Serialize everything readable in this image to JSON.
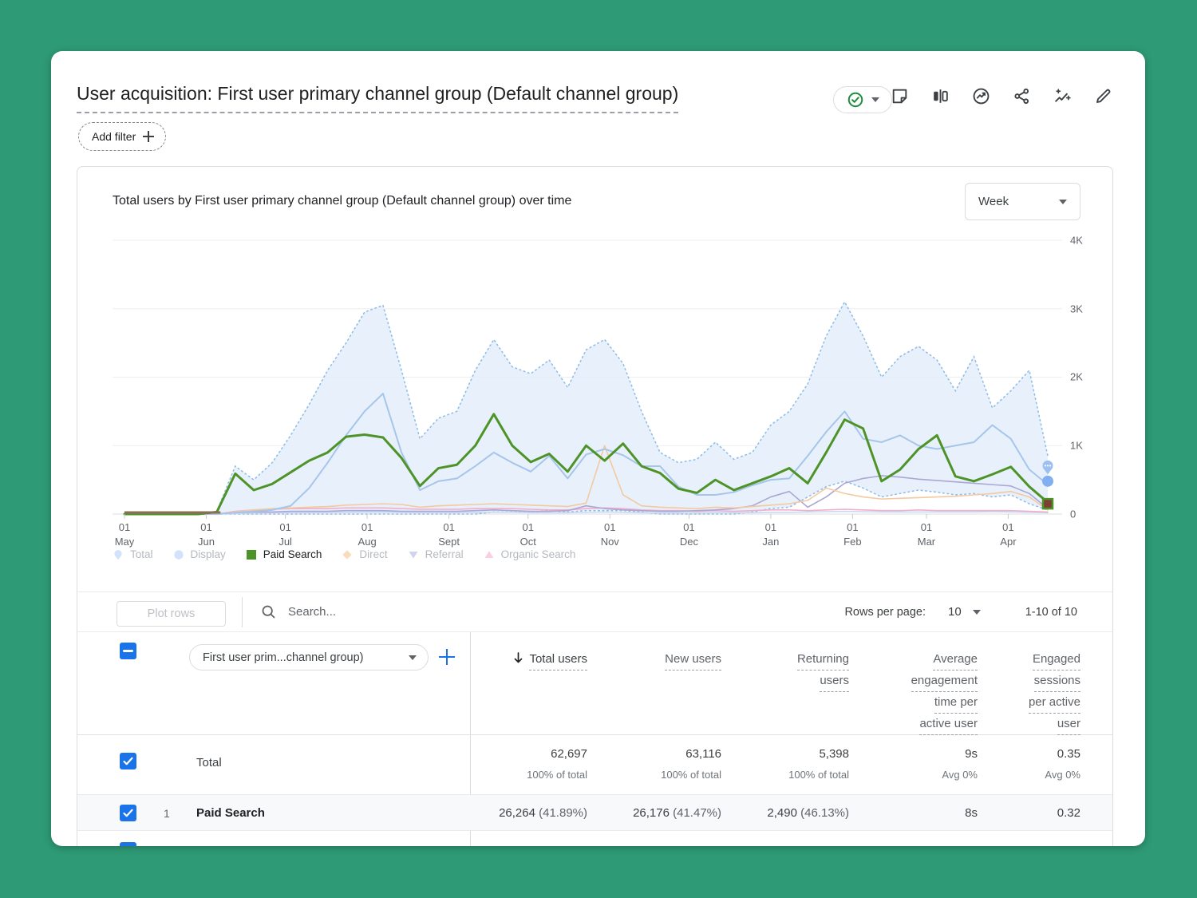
{
  "header": {
    "title": "User acquisition: First user primary channel group (Default channel group)",
    "icons": [
      "notes-icon",
      "comparison-icon",
      "insights-circle-icon",
      "share-icon",
      "intelligence-sparkline-icon",
      "edit-pencil-icon"
    ]
  },
  "filter_bar": {
    "add_filter_label": "Add filter"
  },
  "chart_panel": {
    "title": "Total users by First user primary channel group (Default channel group) over time",
    "interval_value": "Week"
  },
  "chart_data": {
    "type": "line",
    "title": "Total users by First user primary channel group (Default channel group) over time",
    "granularity": "Week",
    "ylim": [
      0,
      4000
    ],
    "y_tick_labels": [
      "4K",
      "3K",
      "2K",
      "1K",
      "0"
    ],
    "x_ticks": [
      {
        "day": 0,
        "top": "01",
        "month": "May"
      },
      {
        "day": 31,
        "top": "01",
        "month": "Jun"
      },
      {
        "day": 61,
        "top": "01",
        "month": "Jul"
      },
      {
        "day": 92,
        "top": "01",
        "month": "Aug"
      },
      {
        "day": 123,
        "top": "01",
        "month": "Sept"
      },
      {
        "day": 153,
        "top": "01",
        "month": "Oct"
      },
      {
        "day": 184,
        "top": "01",
        "month": "Nov"
      },
      {
        "day": 214,
        "top": "01",
        "month": "Dec"
      },
      {
        "day": 245,
        "top": "01",
        "month": "Jan"
      },
      {
        "day": 276,
        "top": "01",
        "month": "Feb"
      },
      {
        "day": 304,
        "top": "01",
        "month": "Mar"
      },
      {
        "day": 335,
        "top": "01",
        "month": "Apr"
      }
    ],
    "total_days": 350,
    "band": {
      "name": "Total (expected range)",
      "fill": "#e4effa",
      "edge": "#8fbde8",
      "upper": [
        0,
        0,
        0,
        0,
        0,
        40,
        700,
        500,
        750,
        1150,
        1600,
        2100,
        2500,
        2950,
        3050,
        2100,
        1100,
        1400,
        1500,
        2100,
        2550,
        2150,
        2050,
        2250,
        1850,
        2400,
        2550,
        2200,
        1500,
        900,
        750,
        800,
        1050,
        800,
        900,
        1300,
        1500,
        1900,
        2600,
        3100,
        2600,
        2000,
        2300,
        2450,
        2250,
        1800,
        2300,
        1550,
        1800,
        2100,
        850
      ],
      "lower": [
        0,
        0,
        0,
        0,
        0,
        0,
        0,
        0,
        0,
        0,
        0,
        0,
        0,
        0,
        0,
        0,
        0,
        0,
        0,
        0,
        30,
        30,
        30,
        50,
        30,
        50,
        50,
        50,
        30,
        0,
        0,
        0,
        0,
        0,
        30,
        80,
        100,
        250,
        400,
        480,
        380,
        250,
        300,
        350,
        320,
        280,
        300,
        250,
        280,
        150,
        60
      ]
    },
    "series": [
      {
        "name": "Display",
        "color": "#c7d9f3",
        "width": 1.6,
        "values": [
          0,
          0,
          0,
          0,
          0,
          0,
          10,
          15,
          20,
          20,
          20,
          25,
          25,
          30,
          30,
          25,
          20,
          20,
          20,
          25,
          25,
          25,
          20,
          20,
          20,
          25,
          30,
          25,
          20,
          15,
          15,
          15,
          20,
          20,
          20,
          25,
          25,
          30,
          35,
          40,
          35,
          30,
          30,
          30,
          30,
          30,
          30,
          35,
          30,
          25,
          20
        ]
      },
      {
        "name": "Organic Search",
        "color": "#f3aecb",
        "width": 1.6,
        "values": [
          0,
          0,
          0,
          0,
          0,
          0,
          40,
          60,
          70,
          80,
          80,
          80,
          90,
          90,
          90,
          80,
          70,
          70,
          70,
          80,
          80,
          80,
          70,
          60,
          60,
          80,
          90,
          80,
          60,
          50,
          50,
          40,
          50,
          40,
          50,
          60,
          60,
          50,
          60,
          70,
          60,
          50,
          50,
          60,
          50,
          50,
          50,
          50,
          50,
          40,
          30
        ]
      },
      {
        "name": "Referral",
        "color": "#aaa7d4",
        "width": 1.6,
        "values": [
          0,
          0,
          0,
          0,
          0,
          0,
          20,
          30,
          30,
          40,
          40,
          40,
          50,
          50,
          50,
          40,
          40,
          40,
          40,
          50,
          60,
          50,
          40,
          40,
          50,
          120,
          80,
          60,
          50,
          40,
          40,
          50,
          60,
          80,
          120,
          250,
          330,
          100,
          250,
          450,
          520,
          560,
          540,
          510,
          490,
          470,
          450,
          430,
          410,
          300,
          80
        ]
      },
      {
        "name": "Direct",
        "color": "#f3c9a0",
        "width": 1.6,
        "values": [
          0,
          0,
          0,
          0,
          0,
          0,
          30,
          60,
          80,
          90,
          100,
          110,
          130,
          140,
          150,
          140,
          100,
          120,
          130,
          140,
          150,
          140,
          130,
          120,
          110,
          160,
          1000,
          280,
          120,
          100,
          90,
          80,
          100,
          90,
          110,
          130,
          150,
          200,
          380,
          300,
          250,
          220,
          230,
          240,
          250,
          260,
          280,
          300,
          330,
          250,
          60
        ]
      },
      {
        "name": "Total",
        "color": "#a6c5ea",
        "width": 2,
        "values": [
          0,
          0,
          0,
          0,
          0,
          0,
          20,
          40,
          60,
          120,
          380,
          750,
          1150,
          1500,
          1760,
          900,
          350,
          480,
          520,
          700,
          900,
          750,
          620,
          850,
          520,
          870,
          950,
          860,
          700,
          700,
          400,
          280,
          280,
          320,
          420,
          500,
          520,
          850,
          1200,
          1500,
          1100,
          1050,
          1150,
          1000,
          950,
          1000,
          1050,
          1300,
          1100,
          650,
          430
        ]
      },
      {
        "name": "Paid Search",
        "color": "#4e9328",
        "width": 3,
        "values": [
          0,
          0,
          0,
          0,
          0,
          30,
          590,
          350,
          440,
          610,
          780,
          900,
          1130,
          1160,
          1120,
          820,
          410,
          670,
          720,
          1000,
          1460,
          1000,
          760,
          880,
          620,
          1000,
          780,
          1030,
          700,
          600,
          370,
          310,
          500,
          350,
          450,
          550,
          670,
          450,
          900,
          1380,
          1250,
          480,
          650,
          950,
          1150,
          550,
          480,
          580,
          690,
          400,
          170
        ]
      }
    ],
    "markers": {
      "pin_value": 660,
      "circle_value": 480,
      "square_value": 150,
      "pin_color": "#9cc0f0",
      "circle_color": "#82aef2",
      "square_fill": "#7c4032",
      "square_edge": "#4e9328"
    },
    "zero_overlap_color": "#8a6e57",
    "grid": "horizontal",
    "legend_position": "bottom"
  },
  "legend": {
    "items": [
      {
        "label": "Total",
        "shape": "pin-icon",
        "color": "#aecbfa",
        "active": false
      },
      {
        "label": "Display",
        "shape": "circle-icon",
        "color": "#aecbfa",
        "active": false
      },
      {
        "label": "Paid Search",
        "shape": "square-icon",
        "color": "#4e9328",
        "active": true
      },
      {
        "label": "Direct",
        "shape": "diamond-icon",
        "color": "#f5c187",
        "active": false
      },
      {
        "label": "Referral",
        "shape": "triangle-down-icon",
        "color": "#aab4e0",
        "active": false
      },
      {
        "label": "Organic Search",
        "shape": "triangle-up-icon",
        "color": "#f6a9c9",
        "active": false
      }
    ]
  },
  "table": {
    "toolbar": {
      "plot_rows_label": "Plot rows",
      "search_text": "Search...",
      "rows_per_page_label": "Rows per page:",
      "rows_per_page_value": "10",
      "pagination": "1-10 of 10"
    },
    "dimension_dropdown_label": "First user prim...channel group)",
    "columns": [
      {
        "lines": [
          "Total users"
        ],
        "sorted": true
      },
      {
        "lines": [
          "New users"
        ]
      },
      {
        "lines": [
          "Returning",
          "users"
        ]
      },
      {
        "lines": [
          "Average",
          "engagement",
          "time per",
          "active user"
        ]
      },
      {
        "lines": [
          "Engaged",
          "sessions",
          "per active",
          "user"
        ]
      }
    ],
    "totals": {
      "label": "Total",
      "c1": "62,697",
      "c1_sub": "100% of total",
      "c2": "63,116",
      "c2_sub": "100% of total",
      "c3": "5,398",
      "c3_sub": "100% of total",
      "c4": "9s",
      "c4_sub": "Avg 0%",
      "c5": "0.35",
      "c5_sub": "Avg 0%"
    },
    "rows": [
      {
        "index": "1",
        "name": "Paid Search",
        "c1": "26,264",
        "c1_pct": "(41.89%)",
        "c2": "26,176",
        "c2_pct": "(41.47%)",
        "c3": "2,490",
        "c3_pct": "(46.13%)",
        "c4": "8s",
        "c5": "0.32"
      }
    ]
  },
  "colors": {
    "accent_blue": "#1a73e8",
    "check_green": "#1e8e3e",
    "page_bg": "#2e9b76",
    "paid_search_green": "#4e9328"
  }
}
